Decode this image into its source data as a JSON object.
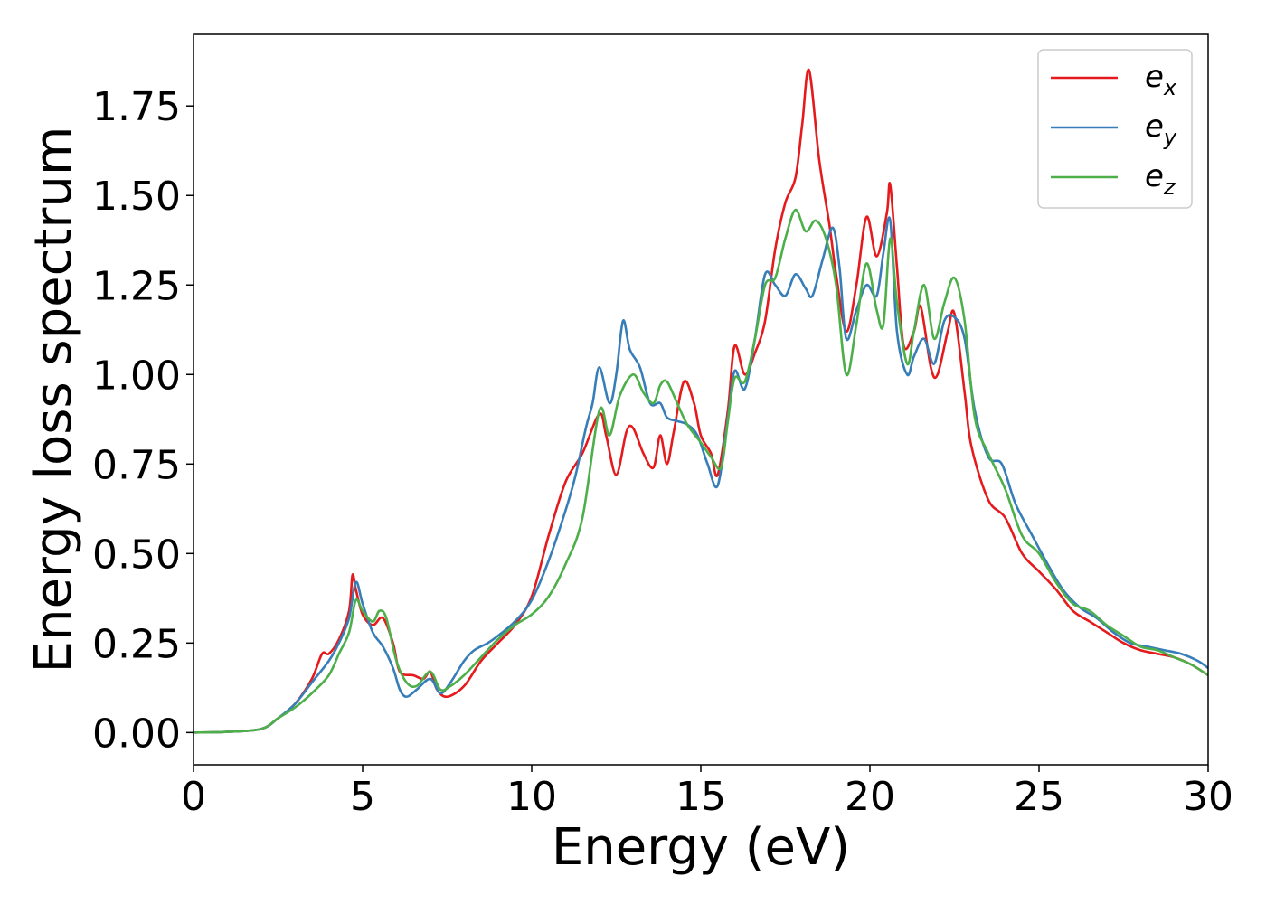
{
  "chart_data": {
    "type": "line",
    "title": "",
    "xlabel": "Energy (eV)",
    "ylabel": "Energy loss spectrum",
    "xlim": [
      0,
      30
    ],
    "ylim": [
      -0.09,
      1.95
    ],
    "xticks": [
      0,
      5,
      10,
      15,
      20,
      25,
      30
    ],
    "xtick_labels": [
      "0",
      "5",
      "10",
      "15",
      "20",
      "25",
      "30"
    ],
    "yticks": [
      0.0,
      0.25,
      0.5,
      0.75,
      1.0,
      1.25,
      1.5,
      1.75
    ],
    "ytick_labels": [
      "0.00",
      "0.25",
      "0.50",
      "0.75",
      "1.00",
      "1.25",
      "1.50",
      "1.75"
    ],
    "grid": false,
    "legend_position": "top-right",
    "series": [
      {
        "name": "e_x",
        "legend_base": "e",
        "legend_sub": "x",
        "color": "#e41a1c",
        "points": [
          [
            0,
            0
          ],
          [
            1,
            0.002
          ],
          [
            2,
            0.01
          ],
          [
            2.5,
            0.04
          ],
          [
            3,
            0.08
          ],
          [
            3.5,
            0.15
          ],
          [
            3.8,
            0.22
          ],
          [
            4.0,
            0.22
          ],
          [
            4.3,
            0.26
          ],
          [
            4.6,
            0.34
          ],
          [
            4.7,
            0.44
          ],
          [
            4.8,
            0.4
          ],
          [
            5.0,
            0.33
          ],
          [
            5.3,
            0.3
          ],
          [
            5.6,
            0.32
          ],
          [
            5.9,
            0.25
          ],
          [
            6.1,
            0.17
          ],
          [
            6.5,
            0.16
          ],
          [
            6.8,
            0.15
          ],
          [
            7.0,
            0.17
          ],
          [
            7.2,
            0.12
          ],
          [
            7.5,
            0.1
          ],
          [
            8.0,
            0.13
          ],
          [
            8.5,
            0.2
          ],
          [
            9.0,
            0.25
          ],
          [
            9.5,
            0.3
          ],
          [
            10.0,
            0.38
          ],
          [
            10.5,
            0.55
          ],
          [
            11.0,
            0.7
          ],
          [
            11.5,
            0.78
          ],
          [
            12.0,
            0.89
          ],
          [
            12.2,
            0.83
          ],
          [
            12.5,
            0.72
          ],
          [
            12.8,
            0.84
          ],
          [
            13.0,
            0.85
          ],
          [
            13.3,
            0.78
          ],
          [
            13.6,
            0.74
          ],
          [
            13.8,
            0.83
          ],
          [
            14.0,
            0.75
          ],
          [
            14.2,
            0.84
          ],
          [
            14.5,
            0.98
          ],
          [
            14.8,
            0.92
          ],
          [
            15.0,
            0.83
          ],
          [
            15.3,
            0.78
          ],
          [
            15.5,
            0.72
          ],
          [
            15.8,
            0.9
          ],
          [
            16.0,
            1.08
          ],
          [
            16.3,
            1.0
          ],
          [
            16.6,
            1.06
          ],
          [
            16.9,
            1.15
          ],
          [
            17.2,
            1.35
          ],
          [
            17.5,
            1.48
          ],
          [
            17.8,
            1.55
          ],
          [
            18.0,
            1.7
          ],
          [
            18.2,
            1.85
          ],
          [
            18.5,
            1.6
          ],
          [
            18.8,
            1.42
          ],
          [
            19.0,
            1.28
          ],
          [
            19.3,
            1.12
          ],
          [
            19.6,
            1.25
          ],
          [
            19.9,
            1.44
          ],
          [
            20.2,
            1.33
          ],
          [
            20.5,
            1.45
          ],
          [
            20.6,
            1.53
          ],
          [
            20.8,
            1.3
          ],
          [
            21.0,
            1.08
          ],
          [
            21.3,
            1.12
          ],
          [
            21.5,
            1.19
          ],
          [
            21.8,
            1.02
          ],
          [
            22.0,
            1.0
          ],
          [
            22.3,
            1.12
          ],
          [
            22.5,
            1.17
          ],
          [
            22.8,
            0.95
          ],
          [
            23.0,
            0.8
          ],
          [
            23.5,
            0.65
          ],
          [
            24.0,
            0.6
          ],
          [
            24.5,
            0.5
          ],
          [
            25.0,
            0.45
          ],
          [
            25.5,
            0.4
          ],
          [
            26.0,
            0.34
          ],
          [
            26.5,
            0.31
          ],
          [
            27.0,
            0.28
          ],
          [
            27.5,
            0.25
          ],
          [
            28.0,
            0.23
          ],
          [
            28.5,
            0.22
          ],
          [
            29.0,
            0.21
          ],
          [
            29.5,
            0.19
          ],
          [
            30.0,
            0.16
          ]
        ]
      },
      {
        "name": "e_y",
        "legend_base": "e",
        "legend_sub": "y",
        "color": "#377eb8",
        "points": [
          [
            0,
            0
          ],
          [
            1,
            0.002
          ],
          [
            2,
            0.01
          ],
          [
            2.5,
            0.04
          ],
          [
            3,
            0.08
          ],
          [
            3.5,
            0.14
          ],
          [
            4.0,
            0.2
          ],
          [
            4.3,
            0.25
          ],
          [
            4.6,
            0.32
          ],
          [
            4.8,
            0.42
          ],
          [
            5.0,
            0.36
          ],
          [
            5.3,
            0.28
          ],
          [
            5.6,
            0.24
          ],
          [
            5.9,
            0.18
          ],
          [
            6.1,
            0.12
          ],
          [
            6.3,
            0.1
          ],
          [
            6.6,
            0.12
          ],
          [
            7.0,
            0.15
          ],
          [
            7.3,
            0.11
          ],
          [
            7.6,
            0.14
          ],
          [
            8.0,
            0.2
          ],
          [
            8.3,
            0.23
          ],
          [
            8.7,
            0.25
          ],
          [
            9.0,
            0.27
          ],
          [
            9.5,
            0.31
          ],
          [
            10.0,
            0.37
          ],
          [
            10.5,
            0.48
          ],
          [
            11.0,
            0.62
          ],
          [
            11.3,
            0.72
          ],
          [
            11.6,
            0.85
          ],
          [
            11.8,
            0.92
          ],
          [
            12.0,
            1.02
          ],
          [
            12.3,
            0.92
          ],
          [
            12.5,
            1.0
          ],
          [
            12.7,
            1.15
          ],
          [
            12.9,
            1.07
          ],
          [
            13.2,
            1.02
          ],
          [
            13.5,
            0.92
          ],
          [
            13.8,
            0.92
          ],
          [
            14.0,
            0.88
          ],
          [
            14.3,
            0.87
          ],
          [
            14.6,
            0.86
          ],
          [
            14.9,
            0.83
          ],
          [
            15.2,
            0.75
          ],
          [
            15.5,
            0.69
          ],
          [
            15.8,
            0.88
          ],
          [
            16.0,
            1.01
          ],
          [
            16.3,
            0.96
          ],
          [
            16.6,
            1.1
          ],
          [
            16.9,
            1.28
          ],
          [
            17.2,
            1.25
          ],
          [
            17.5,
            1.22
          ],
          [
            17.8,
            1.28
          ],
          [
            18.1,
            1.24
          ],
          [
            18.3,
            1.22
          ],
          [
            18.6,
            1.32
          ],
          [
            18.9,
            1.41
          ],
          [
            19.1,
            1.3
          ],
          [
            19.3,
            1.1
          ],
          [
            19.6,
            1.18
          ],
          [
            19.9,
            1.25
          ],
          [
            20.2,
            1.22
          ],
          [
            20.4,
            1.34
          ],
          [
            20.6,
            1.43
          ],
          [
            20.8,
            1.12
          ],
          [
            21.1,
            1.0
          ],
          [
            21.3,
            1.05
          ],
          [
            21.6,
            1.1
          ],
          [
            21.9,
            1.03
          ],
          [
            22.2,
            1.15
          ],
          [
            22.5,
            1.16
          ],
          [
            22.8,
            1.1
          ],
          [
            23.1,
            0.9
          ],
          [
            23.5,
            0.77
          ],
          [
            23.9,
            0.75
          ],
          [
            24.3,
            0.64
          ],
          [
            24.8,
            0.55
          ],
          [
            25.2,
            0.48
          ],
          [
            25.7,
            0.4
          ],
          [
            26.2,
            0.35
          ],
          [
            26.7,
            0.32
          ],
          [
            27.2,
            0.28
          ],
          [
            27.7,
            0.25
          ],
          [
            28.2,
            0.24
          ],
          [
            28.7,
            0.23
          ],
          [
            29.2,
            0.22
          ],
          [
            29.7,
            0.2
          ],
          [
            30.0,
            0.18
          ]
        ]
      },
      {
        "name": "e_z",
        "legend_base": "e",
        "legend_sub": "z",
        "color": "#4daf4a",
        "points": [
          [
            0,
            0
          ],
          [
            1,
            0.002
          ],
          [
            2,
            0.01
          ],
          [
            2.5,
            0.04
          ],
          [
            3,
            0.07
          ],
          [
            3.5,
            0.11
          ],
          [
            4.0,
            0.16
          ],
          [
            4.3,
            0.22
          ],
          [
            4.6,
            0.28
          ],
          [
            4.8,
            0.37
          ],
          [
            5.0,
            0.34
          ],
          [
            5.3,
            0.31
          ],
          [
            5.5,
            0.34
          ],
          [
            5.7,
            0.32
          ],
          [
            6.0,
            0.2
          ],
          [
            6.3,
            0.14
          ],
          [
            6.6,
            0.13
          ],
          [
            7.0,
            0.17
          ],
          [
            7.3,
            0.12
          ],
          [
            7.6,
            0.13
          ],
          [
            8.0,
            0.16
          ],
          [
            8.5,
            0.21
          ],
          [
            9.0,
            0.26
          ],
          [
            9.5,
            0.3
          ],
          [
            10.0,
            0.33
          ],
          [
            10.5,
            0.38
          ],
          [
            11.0,
            0.47
          ],
          [
            11.5,
            0.6
          ],
          [
            12.0,
            0.9
          ],
          [
            12.3,
            0.83
          ],
          [
            12.6,
            0.94
          ],
          [
            13.0,
            1.0
          ],
          [
            13.3,
            0.95
          ],
          [
            13.6,
            0.92
          ],
          [
            13.8,
            0.97
          ],
          [
            14.0,
            0.98
          ],
          [
            14.3,
            0.92
          ],
          [
            14.6,
            0.86
          ],
          [
            15.0,
            0.81
          ],
          [
            15.3,
            0.77
          ],
          [
            15.6,
            0.74
          ],
          [
            15.8,
            0.87
          ],
          [
            16.0,
            0.99
          ],
          [
            16.3,
            0.98
          ],
          [
            16.6,
            1.1
          ],
          [
            16.9,
            1.25
          ],
          [
            17.2,
            1.27
          ],
          [
            17.5,
            1.38
          ],
          [
            17.8,
            1.46
          ],
          [
            18.1,
            1.4
          ],
          [
            18.4,
            1.43
          ],
          [
            18.7,
            1.38
          ],
          [
            19.0,
            1.25
          ],
          [
            19.3,
            1.0
          ],
          [
            19.6,
            1.14
          ],
          [
            19.9,
            1.31
          ],
          [
            20.2,
            1.18
          ],
          [
            20.4,
            1.14
          ],
          [
            20.6,
            1.38
          ],
          [
            20.8,
            1.2
          ],
          [
            21.1,
            1.03
          ],
          [
            21.3,
            1.12
          ],
          [
            21.6,
            1.25
          ],
          [
            21.9,
            1.1
          ],
          [
            22.2,
            1.2
          ],
          [
            22.5,
            1.27
          ],
          [
            22.8,
            1.15
          ],
          [
            23.1,
            0.88
          ],
          [
            23.5,
            0.78
          ],
          [
            24.0,
            0.68
          ],
          [
            24.5,
            0.55
          ],
          [
            25.0,
            0.5
          ],
          [
            25.5,
            0.42
          ],
          [
            26.0,
            0.36
          ],
          [
            26.5,
            0.34
          ],
          [
            27.0,
            0.3
          ],
          [
            27.5,
            0.27
          ],
          [
            28.0,
            0.24
          ],
          [
            28.5,
            0.23
          ],
          [
            29.0,
            0.21
          ],
          [
            29.5,
            0.19
          ],
          [
            30.0,
            0.16
          ]
        ]
      }
    ]
  }
}
